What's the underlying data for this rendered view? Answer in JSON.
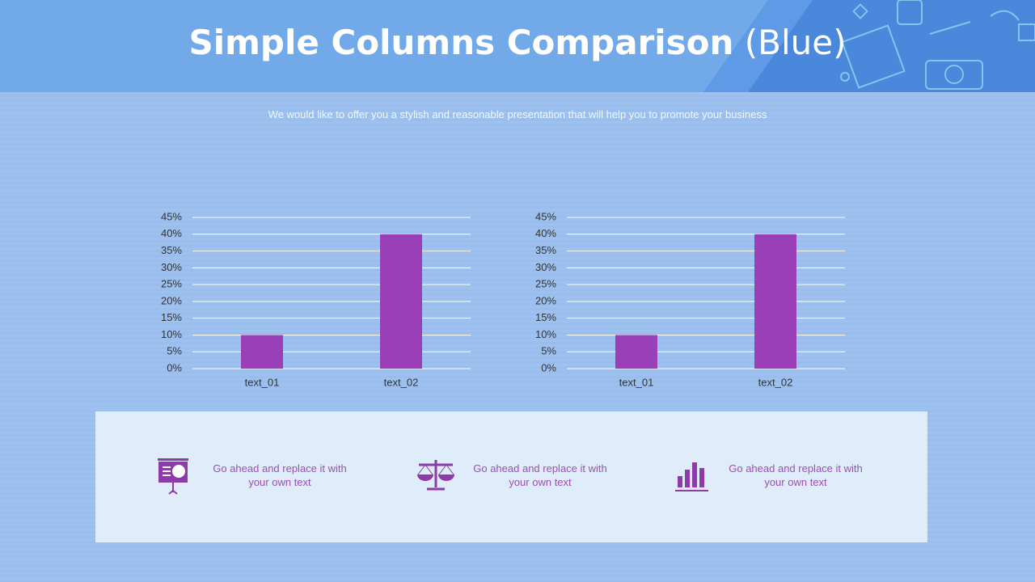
{
  "header": {
    "title": "Simple Columns Comparison",
    "title_suffix": "(Blue)",
    "subtitle": "We would like to offer you a stylish and reasonable presentation that will help you to promote your business"
  },
  "chart_data": [
    {
      "type": "bar",
      "categories": [
        "text_01",
        "text_02"
      ],
      "values": [
        10,
        40
      ],
      "color": "#9b3fb8",
      "ylim": [
        0,
        45
      ],
      "yticks": [
        {
          "value": 0,
          "label": "0%"
        },
        {
          "value": 5,
          "label": "5%"
        },
        {
          "value": 10,
          "label": "10%"
        },
        {
          "value": 15,
          "label": "15%"
        },
        {
          "value": 20,
          "label": "20%"
        },
        {
          "value": 25,
          "label": "25%"
        },
        {
          "value": 30,
          "label": "30%"
        },
        {
          "value": 35,
          "label": "35%"
        },
        {
          "value": 40,
          "label": "40%"
        },
        {
          "value": 45,
          "label": "45%"
        }
      ],
      "grid": true
    },
    {
      "type": "bar",
      "categories": [
        "text_01",
        "text_02"
      ],
      "values": [
        10,
        40
      ],
      "color": "#9b3fb8",
      "ylim": [
        0,
        45
      ],
      "yticks": [
        {
          "value": 0,
          "label": "0%"
        },
        {
          "value": 5,
          "label": "5%"
        },
        {
          "value": 10,
          "label": "10%"
        },
        {
          "value": 15,
          "label": "15%"
        },
        {
          "value": 20,
          "label": "20%"
        },
        {
          "value": 25,
          "label": "25%"
        },
        {
          "value": 30,
          "label": "30%"
        },
        {
          "value": 35,
          "label": "35%"
        },
        {
          "value": 40,
          "label": "40%"
        },
        {
          "value": 45,
          "label": "45%"
        }
      ],
      "grid": true
    }
  ],
  "features": [
    {
      "text": "Go ahead and replace it with your own text"
    },
    {
      "text": "Go ahead and replace it with your own text"
    },
    {
      "text": "Go ahead and replace it with your own text"
    }
  ]
}
